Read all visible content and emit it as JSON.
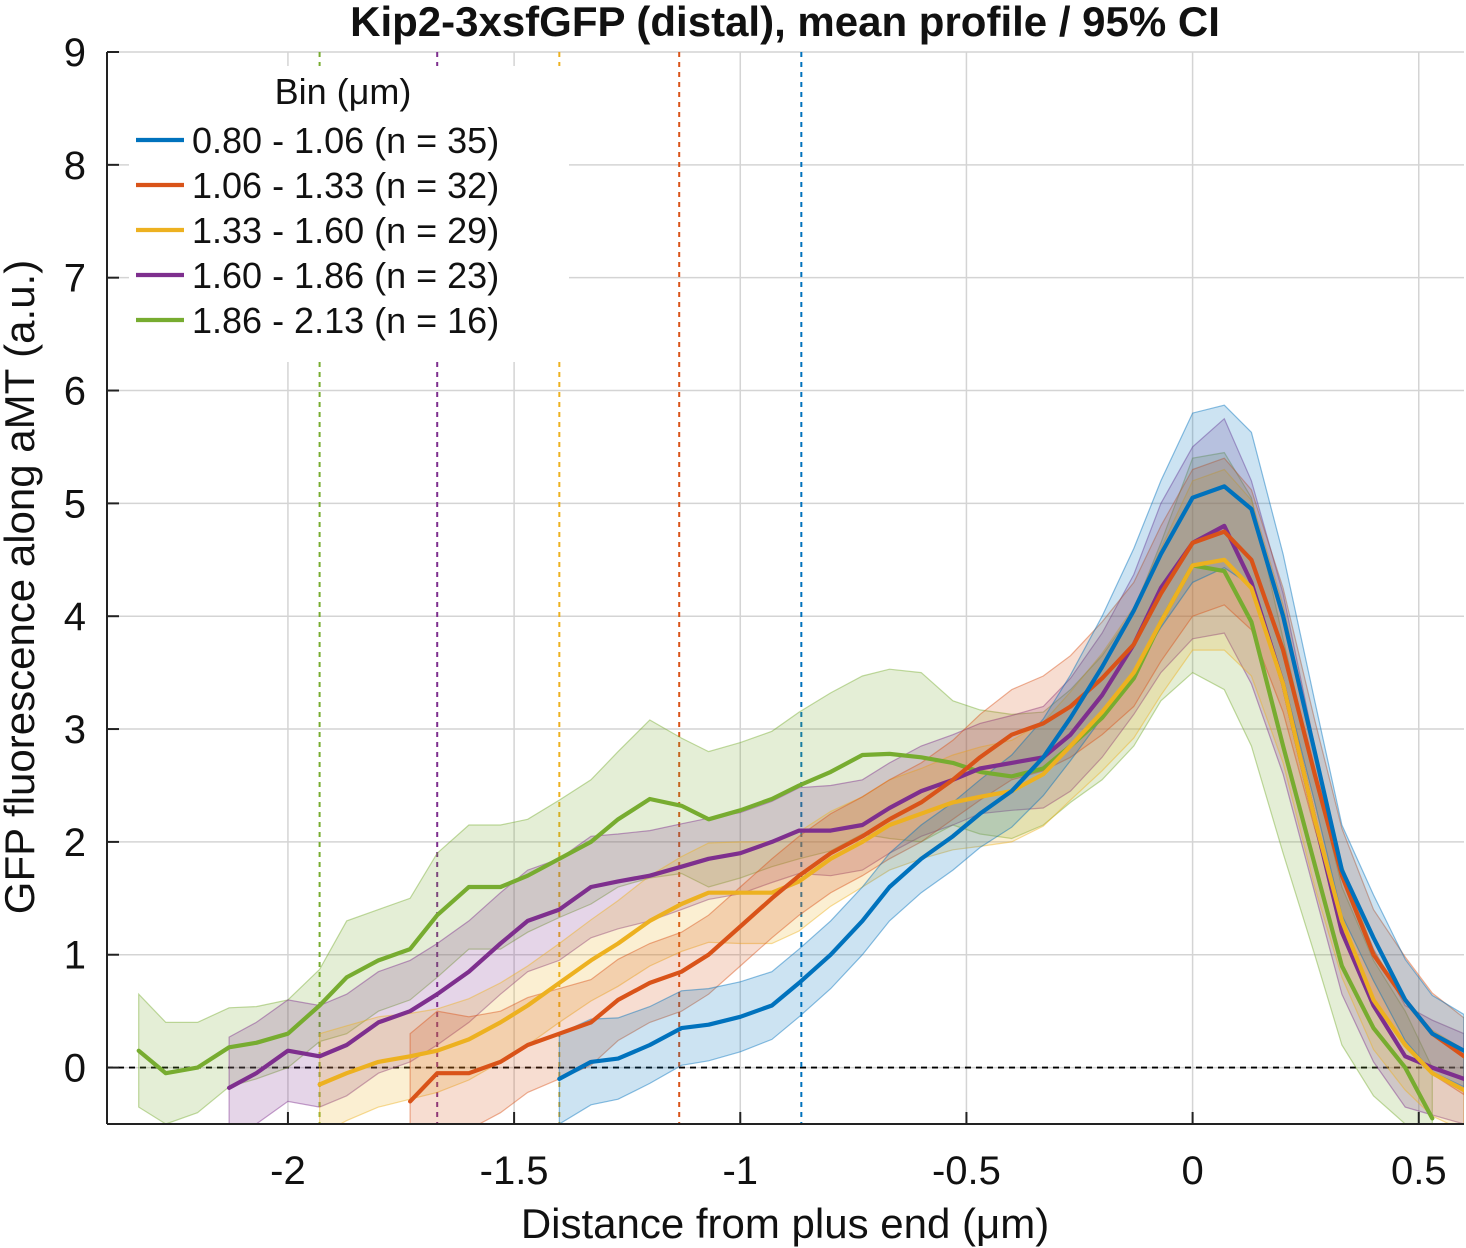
{
  "chart_data": {
    "type": "line",
    "title": "Kip2-3xsfGFP (distal), mean profile / 95% CI",
    "xlabel": "Distance from plus end (μm)",
    "ylabel": "GFP fluorescence along aMT (a.u.)",
    "xlim": [
      -2.4,
      0.6
    ],
    "ylim": [
      -0.5,
      9
    ],
    "x_ticks": [
      -2,
      -1.5,
      -1,
      -0.5,
      0,
      0.5
    ],
    "x_tick_labels": [
      "-2",
      "-1.5",
      "-1",
      "-0.5",
      "0",
      "0.5"
    ],
    "y_ticks": [
      0,
      1,
      2,
      3,
      4,
      5,
      6,
      7,
      8,
      9
    ],
    "y_tick_labels": [
      "0",
      "1",
      "2",
      "3",
      "4",
      "5",
      "6",
      "7",
      "8",
      "9"
    ],
    "grid": true,
    "zero_reference_line": 0,
    "legend": {
      "title": "Bin (μm)",
      "placement": "top-left"
    },
    "series": [
      {
        "name": "0.80 - 1.06 (n =  35)",
        "color": "#0072BD",
        "cutoff_x": -0.865,
        "x": [
          -1.4,
          -1.33,
          -1.27,
          -1.2,
          -1.13,
          -1.07,
          -1.0,
          -0.93,
          -0.87,
          -0.8,
          -0.73,
          -0.67,
          -0.6,
          -0.53,
          -0.47,
          -0.4,
          -0.33,
          -0.27,
          -0.2,
          -0.13,
          -0.07,
          0.0,
          0.07,
          0.13,
          0.2,
          0.27,
          0.33,
          0.4,
          0.47,
          0.53,
          0.6
        ],
        "y": [
          -0.1,
          0.05,
          0.08,
          0.2,
          0.35,
          0.38,
          0.45,
          0.55,
          0.75,
          1.0,
          1.3,
          1.6,
          1.85,
          2.05,
          2.25,
          2.45,
          2.75,
          3.1,
          3.55,
          4.05,
          4.55,
          5.05,
          5.15,
          4.95,
          4.0,
          2.8,
          1.75,
          1.15,
          0.6,
          0.3,
          0.15
        ],
        "ci_half_width": [
          0.4,
          0.38,
          0.36,
          0.34,
          0.33,
          0.32,
          0.31,
          0.3,
          0.3,
          0.3,
          0.3,
          0.3,
          0.3,
          0.3,
          0.3,
          0.32,
          0.34,
          0.38,
          0.45,
          0.55,
          0.65,
          0.75,
          0.72,
          0.68,
          0.55,
          0.45,
          0.4,
          0.38,
          0.36,
          0.34,
          0.32
        ]
      },
      {
        "name": "1.06 - 1.33 (n =  32)",
        "color": "#D95319",
        "cutoff_x": -1.135,
        "x": [
          -1.73,
          -1.67,
          -1.6,
          -1.53,
          -1.47,
          -1.4,
          -1.33,
          -1.27,
          -1.2,
          -1.13,
          -1.07,
          -1.0,
          -0.93,
          -0.87,
          -0.8,
          -0.73,
          -0.67,
          -0.6,
          -0.53,
          -0.47,
          -0.4,
          -0.33,
          -0.27,
          -0.2,
          -0.13,
          -0.07,
          0.0,
          0.07,
          0.13,
          0.2,
          0.27,
          0.33,
          0.4,
          0.47,
          0.53,
          0.6
        ],
        "y": [
          -0.3,
          -0.05,
          -0.05,
          0.05,
          0.2,
          0.3,
          0.4,
          0.6,
          0.75,
          0.85,
          1.0,
          1.25,
          1.5,
          1.7,
          1.9,
          2.05,
          2.2,
          2.35,
          2.55,
          2.75,
          2.95,
          3.05,
          3.2,
          3.45,
          3.75,
          4.2,
          4.65,
          4.75,
          4.5,
          3.7,
          2.6,
          1.7,
          1.0,
          0.6,
          0.3,
          0.1
        ],
        "ci_half_width": [
          0.6,
          0.55,
          0.5,
          0.45,
          0.42,
          0.4,
          0.38,
          0.36,
          0.35,
          0.35,
          0.35,
          0.35,
          0.35,
          0.35,
          0.35,
          0.35,
          0.35,
          0.35,
          0.35,
          0.38,
          0.4,
          0.42,
          0.45,
          0.5,
          0.55,
          0.6,
          0.65,
          0.65,
          0.62,
          0.55,
          0.48,
          0.42,
          0.4,
          0.38,
          0.36,
          0.34
        ]
      },
      {
        "name": "1.33 - 1.60 (n =  29)",
        "color": "#EDB120",
        "cutoff_x": -1.4,
        "x": [
          -1.93,
          -1.87,
          -1.8,
          -1.73,
          -1.67,
          -1.6,
          -1.53,
          -1.47,
          -1.4,
          -1.33,
          -1.27,
          -1.2,
          -1.13,
          -1.07,
          -1.0,
          -0.93,
          -0.87,
          -0.8,
          -0.73,
          -0.67,
          -0.6,
          -0.53,
          -0.47,
          -0.4,
          -0.33,
          -0.27,
          -0.2,
          -0.13,
          -0.07,
          0.0,
          0.07,
          0.13,
          0.2,
          0.27,
          0.33,
          0.4,
          0.47,
          0.53,
          0.6
        ],
        "y": [
          -0.15,
          -0.05,
          0.05,
          0.1,
          0.15,
          0.25,
          0.4,
          0.55,
          0.75,
          0.95,
          1.1,
          1.3,
          1.45,
          1.55,
          1.55,
          1.55,
          1.65,
          1.85,
          2.0,
          2.15,
          2.25,
          2.35,
          2.4,
          2.45,
          2.6,
          2.85,
          3.15,
          3.5,
          3.95,
          4.45,
          4.5,
          4.25,
          3.4,
          2.2,
          1.3,
          0.6,
          0.2,
          -0.05,
          -0.2
        ],
        "ci_half_width": [
          0.45,
          0.42,
          0.4,
          0.38,
          0.37,
          0.36,
          0.35,
          0.35,
          0.35,
          0.36,
          0.38,
          0.4,
          0.42,
          0.44,
          0.45,
          0.45,
          0.44,
          0.42,
          0.4,
          0.4,
          0.4,
          0.42,
          0.44,
          0.45,
          0.46,
          0.48,
          0.52,
          0.58,
          0.65,
          0.75,
          0.8,
          0.78,
          0.7,
          0.6,
          0.5,
          0.44,
          0.4,
          0.38,
          0.36
        ]
      },
      {
        "name": "1.60 - 1.86 (n =  23)",
        "color": "#7E2F8E",
        "cutoff_x": -1.67,
        "x": [
          -2.13,
          -2.07,
          -2.0,
          -1.93,
          -1.87,
          -1.8,
          -1.73,
          -1.67,
          -1.6,
          -1.53,
          -1.47,
          -1.4,
          -1.33,
          -1.27,
          -1.2,
          -1.13,
          -1.07,
          -1.0,
          -0.93,
          -0.87,
          -0.8,
          -0.73,
          -0.67,
          -0.6,
          -0.53,
          -0.47,
          -0.4,
          -0.33,
          -0.27,
          -0.2,
          -0.13,
          -0.07,
          0.0,
          0.07,
          0.13,
          0.2,
          0.27,
          0.33,
          0.4,
          0.47,
          0.53,
          0.6
        ],
        "y": [
          -0.18,
          -0.05,
          0.15,
          0.1,
          0.2,
          0.4,
          0.5,
          0.65,
          0.85,
          1.1,
          1.3,
          1.4,
          1.6,
          1.65,
          1.7,
          1.78,
          1.85,
          1.9,
          2.0,
          2.1,
          2.1,
          2.15,
          2.3,
          2.45,
          2.55,
          2.65,
          2.7,
          2.75,
          2.95,
          3.3,
          3.75,
          4.25,
          4.65,
          4.8,
          4.3,
          3.4,
          2.2,
          1.2,
          0.55,
          0.1,
          0.0,
          -0.1
        ],
        "ci_half_width": [
          0.45,
          0.45,
          0.45,
          0.45,
          0.45,
          0.45,
          0.45,
          0.45,
          0.45,
          0.45,
          0.45,
          0.45,
          0.45,
          0.42,
          0.4,
          0.38,
          0.36,
          0.36,
          0.36,
          0.38,
          0.4,
          0.4,
          0.4,
          0.4,
          0.4,
          0.4,
          0.42,
          0.45,
          0.5,
          0.55,
          0.62,
          0.75,
          0.85,
          0.95,
          0.9,
          0.8,
          0.65,
          0.55,
          0.5,
          0.45,
          0.42,
          0.4
        ]
      },
      {
        "name": "1.86 - 2.13 (n =  16)",
        "color": "#77AC30",
        "cutoff_x": -1.93,
        "x": [
          -2.33,
          -2.27,
          -2.2,
          -2.13,
          -2.07,
          -2.0,
          -1.93,
          -1.87,
          -1.8,
          -1.73,
          -1.67,
          -1.6,
          -1.53,
          -1.47,
          -1.4,
          -1.33,
          -1.27,
          -1.2,
          -1.13,
          -1.07,
          -1.0,
          -0.93,
          -0.87,
          -0.8,
          -0.73,
          -0.67,
          -0.6,
          -0.53,
          -0.47,
          -0.4,
          -0.33,
          -0.27,
          -0.2,
          -0.13,
          -0.07,
          0.0,
          0.07,
          0.13,
          0.2,
          0.27,
          0.33,
          0.4,
          0.47,
          0.53
        ],
        "y": [
          0.15,
          -0.05,
          0.0,
          0.18,
          0.22,
          0.3,
          0.55,
          0.8,
          0.95,
          1.05,
          1.35,
          1.6,
          1.6,
          1.7,
          1.85,
          2.0,
          2.2,
          2.38,
          2.32,
          2.2,
          2.28,
          2.38,
          2.5,
          2.62,
          2.77,
          2.78,
          2.75,
          2.7,
          2.62,
          2.58,
          2.65,
          2.85,
          3.1,
          3.45,
          3.95,
          4.45,
          4.4,
          3.95,
          2.85,
          1.8,
          0.9,
          0.35,
          0.0,
          -0.45
        ],
        "ci_half_width": [
          0.5,
          0.45,
          0.4,
          0.35,
          0.32,
          0.3,
          0.32,
          0.5,
          0.45,
          0.45,
          0.55,
          0.55,
          0.55,
          0.5,
          0.52,
          0.55,
          0.6,
          0.7,
          0.6,
          0.6,
          0.6,
          0.6,
          0.65,
          0.7,
          0.7,
          0.75,
          0.75,
          0.55,
          0.55,
          0.55,
          0.5,
          0.5,
          0.55,
          0.6,
          0.7,
          0.95,
          1.05,
          1.1,
          0.95,
          0.8,
          0.7,
          0.6,
          0.5,
          0.45
        ]
      }
    ]
  }
}
